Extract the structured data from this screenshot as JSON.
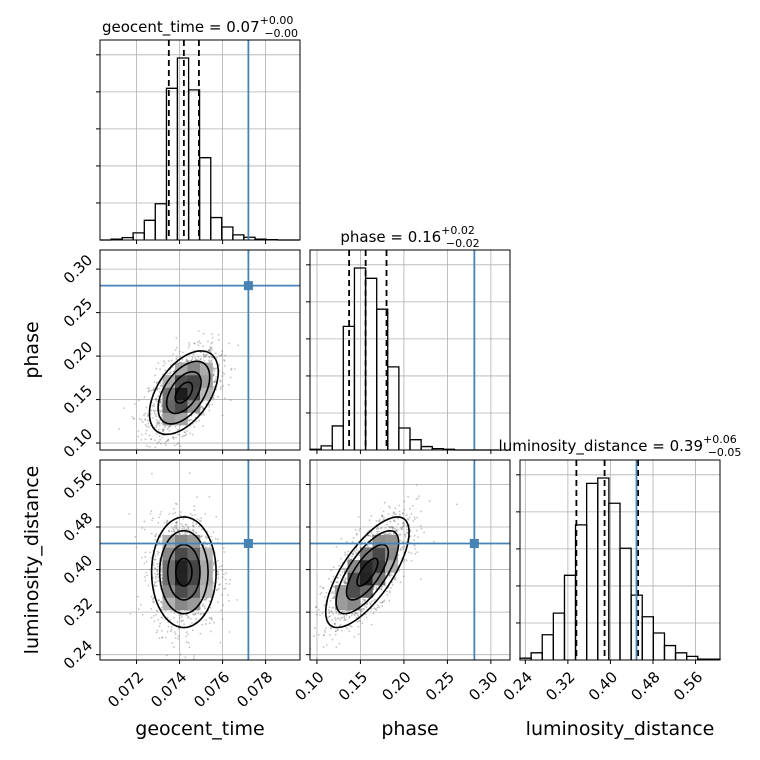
{
  "chart_data": {
    "type": "corner",
    "parameters": [
      "geocent_time",
      "phase",
      "luminosity_distance"
    ],
    "ranges": {
      "geocent_time": [
        0.0703,
        0.0796
      ],
      "phase": [
        0.092,
        0.322
      ],
      "luminosity_distance": [
        0.23,
        0.606
      ]
    },
    "truths": {
      "geocent_time": 0.0772,
      "phase": 0.281,
      "luminosity_distance": 0.449
    },
    "quantiles": {
      "geocent_time": [
        0.0735,
        0.0742,
        0.0749
      ],
      "phase": [
        0.137,
        0.156,
        0.18
      ],
      "luminosity_distance": [
        0.336,
        0.389,
        0.452
      ]
    },
    "titles": [
      {
        "param": "geocent_time",
        "base": "geocent_time = 0.07",
        "plus": "+0.00",
        "minus": "−0.00"
      },
      {
        "param": "phase",
        "base": "phase = 0.16",
        "plus": "+0.02",
        "minus": "−0.02"
      },
      {
        "param": "luminosity_distance",
        "base": "luminosity_distance = 0.39",
        "plus": "+0.06",
        "minus": "−0.05"
      }
    ],
    "ticks": {
      "geocent_time": [
        {
          "v": 0.072,
          "label": "0.072"
        },
        {
          "v": 0.074,
          "label": "0.074"
        },
        {
          "v": 0.076,
          "label": "0.076"
        },
        {
          "v": 0.078,
          "label": "0.078"
        }
      ],
      "phase": [
        {
          "v": 0.1,
          "label": "0.10"
        },
        {
          "v": 0.15,
          "label": "0.15"
        },
        {
          "v": 0.2,
          "label": "0.20"
        },
        {
          "v": 0.25,
          "label": "0.25"
        },
        {
          "v": 0.3,
          "label": "0.30"
        }
      ],
      "luminosity_distance": [
        {
          "v": 0.24,
          "label": "0.24"
        },
        {
          "v": 0.32,
          "label": "0.32"
        },
        {
          "v": 0.4,
          "label": "0.40"
        },
        {
          "v": 0.48,
          "label": "0.48"
        },
        {
          "v": 0.56,
          "label": "0.56"
        }
      ]
    },
    "histograms": {
      "geocent_time": {
        "edges": [
          0.0703,
          0.07081,
          0.07133,
          0.07184,
          0.07236,
          0.07287,
          0.07339,
          0.0739,
          0.07442,
          0.07493,
          0.07545,
          0.07596,
          0.07648,
          0.07699,
          0.07751,
          0.07802,
          0.07854,
          0.07905,
          0.07957
        ],
        "counts": [
          0,
          2,
          6,
          18,
          50,
          92,
          385,
          462,
          381,
          209,
          57,
          33,
          13,
          7,
          2,
          1,
          0,
          0
        ]
      },
      "phase": {
        "edges": [
          0.092,
          0.1048,
          0.1176,
          0.1303,
          0.1431,
          0.1559,
          0.1687,
          0.1814,
          0.1942,
          0.207,
          0.2198,
          0.2326,
          0.2453,
          0.2581,
          0.2709,
          0.2837,
          0.2964,
          0.3092
        ],
        "counts": [
          1,
          6,
          35,
          180,
          265,
          250,
          205,
          121,
          32,
          15,
          5,
          2,
          1,
          0,
          0,
          0,
          0
        ]
      },
      "luminosity_distance": {
        "edges": [
          0.23,
          0.2509,
          0.2718,
          0.2927,
          0.3136,
          0.3344,
          0.3553,
          0.3762,
          0.3971,
          0.418,
          0.4389,
          0.4598,
          0.4807,
          0.5016,
          0.5224,
          0.5433,
          0.5642,
          0.5851,
          0.606
        ],
        "counts": [
          2,
          8,
          28,
          52,
          94,
          150,
          196,
          202,
          174,
          124,
          72,
          48,
          30,
          16,
          8,
          4,
          1,
          1
        ]
      }
    },
    "density": [
      {
        "x": "geocent_time",
        "y": "phase",
        "mean": [
          0.0742,
          0.158
        ],
        "sd": [
          0.0008,
          0.024
        ],
        "corr": 0.5
      },
      {
        "x": "geocent_time",
        "y": "luminosity_distance",
        "mean": [
          0.0742,
          0.395
        ],
        "sd": [
          0.00075,
          0.052
        ],
        "corr": 0.0
      },
      {
        "x": "phase",
        "y": "luminosity_distance",
        "mean": [
          0.158,
          0.395
        ],
        "sd": [
          0.024,
          0.052
        ],
        "corr": 0.72
      }
    ],
    "grid": true,
    "colors": {
      "truth": "#4682b4",
      "hist": "#000000",
      "grid": "#b0b0b0",
      "points": "#555555"
    }
  }
}
